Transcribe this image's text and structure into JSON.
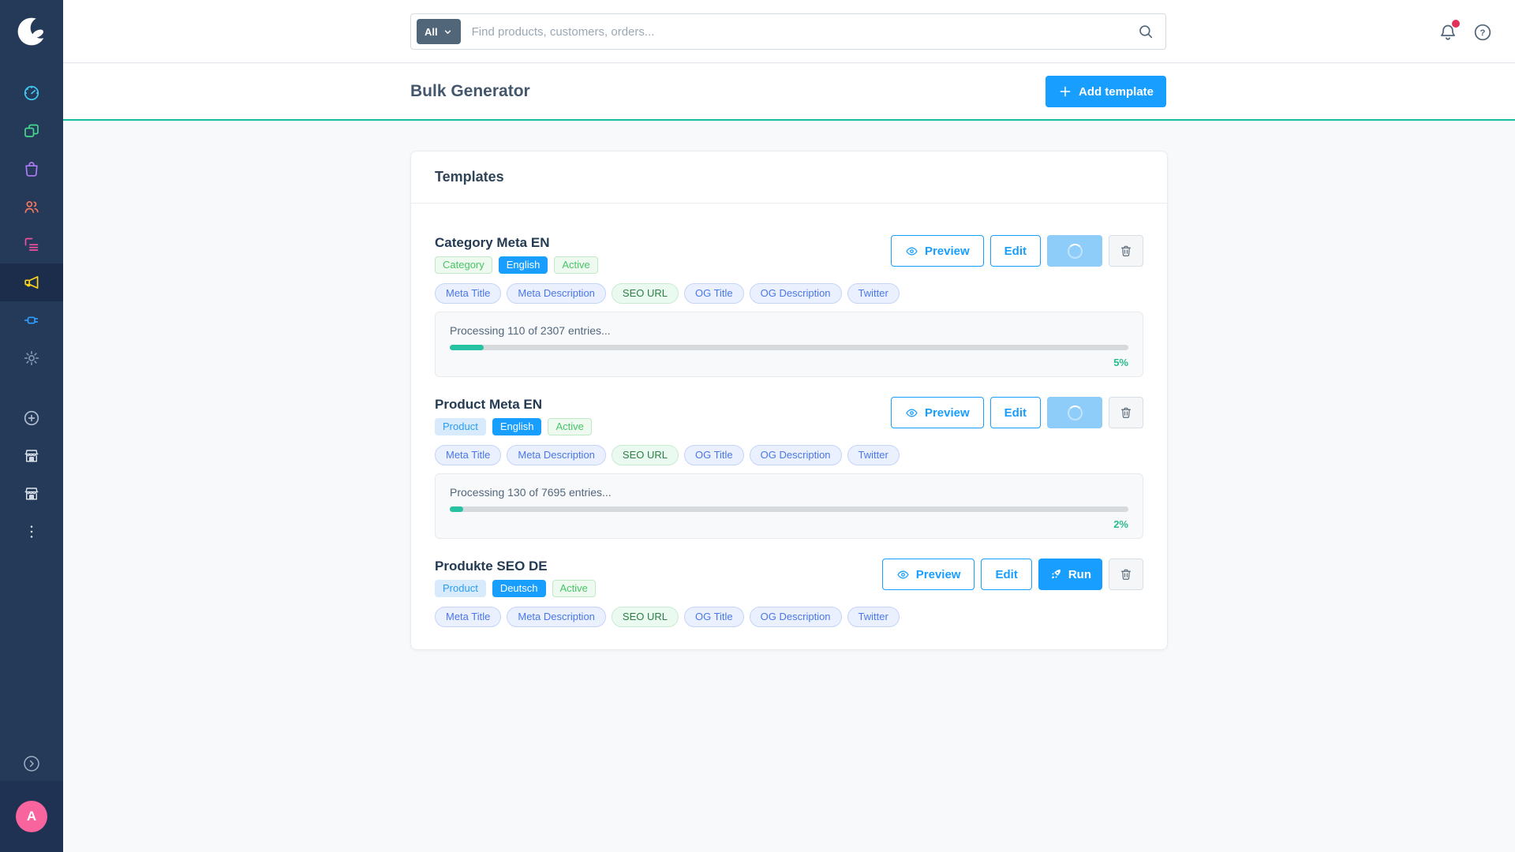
{
  "colors": {
    "accent_blue": "#189eff",
    "teal_line": "#18bda2",
    "progress_teal": "#26c2a2",
    "sidebar_bg": "#253a59",
    "sidebar_active_bg": "#1b2d4b",
    "avatar_pink": "#f7649e",
    "notification_red": "#e0315b"
  },
  "sidebar": {
    "items": [
      {
        "name": "dashboard",
        "color": "#41c8f4",
        "active": false
      },
      {
        "name": "catalogues",
        "color": "#45d68f",
        "active": false
      },
      {
        "name": "orders",
        "color": "#ad7bf7",
        "active": false
      },
      {
        "name": "customers",
        "color": "#f4765d",
        "active": false
      },
      {
        "name": "content",
        "color": "#f24f9e",
        "active": false
      },
      {
        "name": "marketing",
        "color": "#ffd41f",
        "active": true
      },
      {
        "name": "extensions",
        "color": "#2f9dfc",
        "active": false
      },
      {
        "name": "settings",
        "color": "#8196b1",
        "active": false
      }
    ],
    "secondary_items": [
      {
        "name": "add-shortcut",
        "color": "#aebbcc"
      },
      {
        "name": "storefront",
        "color": "#dfe6ee"
      },
      {
        "name": "storefront-2",
        "color": "#dfe6ee"
      },
      {
        "name": "more-options",
        "color": "#dfe6ee"
      }
    ],
    "user": {
      "initial": "A"
    }
  },
  "topbar": {
    "filter_button": "All",
    "search_placeholder": "Find products, customers, orders..."
  },
  "page_header": {
    "title": "Bulk Generator",
    "add_button_label": "Add template"
  },
  "panel": {
    "title": "Templates",
    "templates": [
      {
        "name": "Category Meta EN",
        "badges": [
          {
            "label": "Category",
            "style": "green-soft"
          },
          {
            "label": "English",
            "style": "blue-solid"
          },
          {
            "label": "Active",
            "style": "green-soft"
          }
        ],
        "fields": [
          {
            "label": "Meta Title",
            "style": "blue"
          },
          {
            "label": "Meta Description",
            "style": "blue"
          },
          {
            "label": "SEO URL",
            "style": "green"
          },
          {
            "label": "OG Title",
            "style": "blue"
          },
          {
            "label": "OG Description",
            "style": "blue"
          },
          {
            "label": "Twitter",
            "style": "blue"
          }
        ],
        "actions": {
          "preview_label": "Preview",
          "edit_label": "Edit",
          "state": "loading"
        },
        "progress": {
          "text": "Processing 110 of 2307 entries...",
          "percent": 5,
          "percent_label": "5%"
        }
      },
      {
        "name": "Product Meta EN",
        "badges": [
          {
            "label": "Product",
            "style": "blue-soft"
          },
          {
            "label": "English",
            "style": "blue-solid"
          },
          {
            "label": "Active",
            "style": "green-soft"
          }
        ],
        "fields": [
          {
            "label": "Meta Title",
            "style": "blue"
          },
          {
            "label": "Meta Description",
            "style": "blue"
          },
          {
            "label": "SEO URL",
            "style": "green"
          },
          {
            "label": "OG Title",
            "style": "blue"
          },
          {
            "label": "OG Description",
            "style": "blue"
          },
          {
            "label": "Twitter",
            "style": "blue"
          }
        ],
        "actions": {
          "preview_label": "Preview",
          "edit_label": "Edit",
          "state": "loading"
        },
        "progress": {
          "text": "Processing 130 of 7695 entries...",
          "percent": 2,
          "percent_label": "2%"
        }
      },
      {
        "name": "Produkte SEO DE",
        "badges": [
          {
            "label": "Product",
            "style": "blue-soft"
          },
          {
            "label": "Deutsch",
            "style": "blue-solid"
          },
          {
            "label": "Active",
            "style": "green-soft"
          }
        ],
        "fields": [
          {
            "label": "Meta Title",
            "style": "blue"
          },
          {
            "label": "Meta Description",
            "style": "blue"
          },
          {
            "label": "SEO URL",
            "style": "green"
          },
          {
            "label": "OG Title",
            "style": "blue"
          },
          {
            "label": "OG Description",
            "style": "blue"
          },
          {
            "label": "Twitter",
            "style": "blue"
          }
        ],
        "actions": {
          "preview_label": "Preview",
          "edit_label": "Edit",
          "state": "run",
          "run_label": "Run"
        }
      }
    ]
  }
}
